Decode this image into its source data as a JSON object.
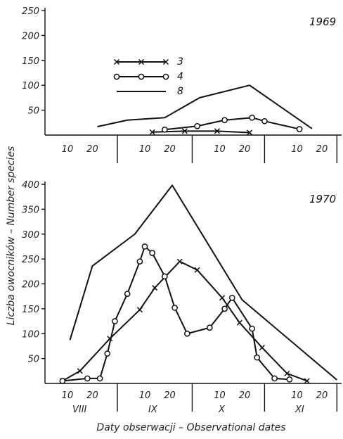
{
  "figure": {
    "ylabel": "Liczba owocników – Number species",
    "xlabel": "Daty obserwacji – Observational dates",
    "month_labels": [
      "VIII",
      "IX",
      "X",
      "XI"
    ],
    "day_ticks": [
      "10",
      "20"
    ]
  },
  "chart_data": [
    {
      "type": "line",
      "title": "1969",
      "ylim": [
        0,
        250
      ],
      "yticks": [
        50,
        100,
        150,
        200,
        250
      ],
      "x_unit": "day index from 1 Aug (Aug 1 = 0)",
      "legend": {
        "placement": "upper-left",
        "entries": [
          "3",
          "4",
          "8"
        ]
      },
      "series": [
        {
          "name": "3",
          "marker": "x",
          "x": [
            43,
            56,
            69,
            82
          ],
          "y": [
            6,
            8,
            8,
            5
          ]
        },
        {
          "name": "4",
          "marker": "o",
          "x": [
            48,
            61,
            72,
            83,
            88,
            102
          ],
          "y": [
            11,
            18,
            30,
            35,
            28,
            12
          ]
        },
        {
          "name": "8",
          "marker": "none",
          "x": [
            21,
            33,
            48,
            62,
            82,
            107
          ],
          "y": [
            17,
            30,
            35,
            75,
            100,
            13
          ]
        }
      ]
    },
    {
      "type": "line",
      "title": "1970",
      "ylim": [
        0,
        400
      ],
      "yticks": [
        50,
        100,
        150,
        200,
        250,
        300,
        350,
        400
      ],
      "x_unit": "day index from 1 Aug (Aug 1 = 0)",
      "series": [
        {
          "name": "3",
          "marker": "x",
          "x": [
            7,
            14,
            26,
            38,
            44,
            54,
            61,
            71,
            78,
            87,
            97,
            105
          ],
          "y": [
            5,
            25,
            90,
            148,
            192,
            245,
            228,
            172,
            122,
            72,
            20,
            5
          ]
        },
        {
          "name": "4",
          "marker": "o",
          "x": [
            7,
            17,
            22,
            25,
            28,
            33,
            38,
            40,
            43,
            48,
            52,
            57,
            66,
            72,
            75,
            83,
            85,
            92,
            98
          ],
          "y": [
            5,
            10,
            10,
            60,
            125,
            180,
            245,
            275,
            262,
            215,
            152,
            100,
            112,
            150,
            172,
            110,
            52,
            10,
            8
          ]
        },
        {
          "name": "8",
          "marker": "none",
          "x": [
            10,
            19,
            36,
            51,
            79,
            117
          ],
          "y": [
            87,
            236,
            300,
            398,
            168,
            7
          ]
        }
      ]
    }
  ]
}
